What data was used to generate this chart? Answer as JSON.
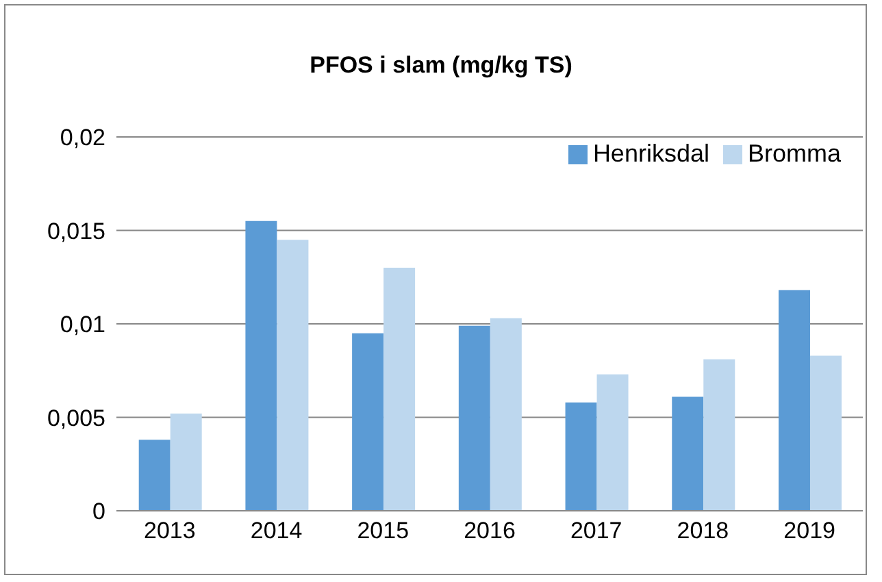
{
  "chart_data": {
    "type": "bar",
    "title": "PFOS i slam (mg/kg TS)",
    "categories": [
      "2013",
      "2014",
      "2015",
      "2016",
      "2017",
      "2018",
      "2019"
    ],
    "series": [
      {
        "name": "Henriksdal",
        "color": "#5b9bd5",
        "values": [
          0.0038,
          0.0155,
          0.0095,
          0.0099,
          0.0058,
          0.0061,
          0.0118
        ]
      },
      {
        "name": "Bromma",
        "color": "#bdd7ee",
        "values": [
          0.0052,
          0.0145,
          0.013,
          0.0103,
          0.0073,
          0.0081,
          0.0083
        ]
      }
    ],
    "ylim": [
      0,
      0.02
    ],
    "yticks": [
      0,
      {
        "value": 0.005,
        "label": "0,005"
      },
      {
        "value": 0.01,
        "label": "0,01"
      },
      {
        "value": 0.015,
        "label": "0,015"
      },
      {
        "value": 0.02,
        "label": "0,02"
      }
    ],
    "grid": "y",
    "legend": "top right"
  }
}
